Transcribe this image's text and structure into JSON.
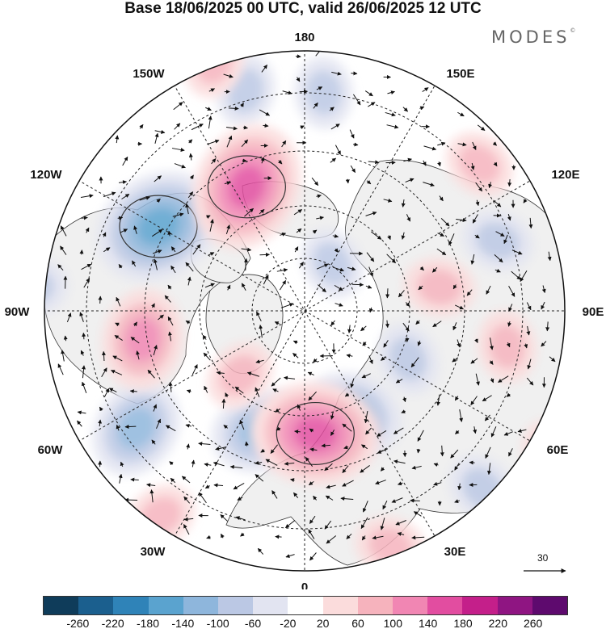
{
  "title": "Base 18/06/2025 00 UTC, valid 26/06/2025 12 UTC",
  "brand": "MODES",
  "brand_mark": "©",
  "longitude_labels": {
    "top": "180",
    "bottom": "0",
    "left": "90W",
    "right": "90E",
    "upper_left_1": "150W",
    "upper_left_2": "120W",
    "upper_right_1": "150E",
    "upper_right_2": "120E",
    "lower_left_1": "60W",
    "lower_left_2": "30W",
    "lower_right_1": "60E",
    "lower_right_2": "30E"
  },
  "vector_scale": {
    "label": "30"
  },
  "colorbar": {
    "ticks": [
      "-260",
      "-220",
      "-180",
      "-140",
      "-100",
      "-60",
      "-20",
      "20",
      "60",
      "100",
      "140",
      "180",
      "220",
      "260"
    ],
    "colors": [
      "#0f3c5a",
      "#1b5f8e",
      "#2f83b8",
      "#5aa3cf",
      "#8eb6dc",
      "#bbc8e4",
      "#e2e4f1",
      "#ffffff",
      "#fbdcdc",
      "#f6b3bd",
      "#f186b3",
      "#e24da0",
      "#c41f8a",
      "#8f1582",
      "#5e0a6e"
    ]
  },
  "anomaly_colors": {
    "neg_light": "#e2e4f1",
    "neg_mid": "#bbc8e4",
    "neg_strong": "#8eb6dc",
    "neg_core": "#5aa3cf",
    "pos_light": "#fbdcdc",
    "pos_mid": "#f6b3bd",
    "pos_strong": "#f186b3",
    "pos_core": "#e24da0",
    "land": "#f0f0f0"
  },
  "anomalies": [
    {
      "kind": "neg",
      "level": 3,
      "lon": -120,
      "colat": 37
    },
    {
      "kind": "neg",
      "level": 2,
      "lon": -20,
      "colat": 28
    },
    {
      "kind": "neg",
      "level": 2,
      "lon": 25,
      "colat": 25
    },
    {
      "kind": "neg",
      "level": 2,
      "lon": -55,
      "colat": 45
    },
    {
      "kind": "neg",
      "level": 1,
      "lon": 150,
      "colat": 12
    },
    {
      "kind": "neg",
      "level": 1,
      "lon": 65,
      "colat": 25
    },
    {
      "kind": "neg",
      "level": 1,
      "lon": 110,
      "colat": 45
    },
    {
      "kind": "neg",
      "level": 1,
      "lon": 45,
      "colat": 55
    },
    {
      "kind": "neg",
      "level": 1,
      "lon": -95,
      "colat": 60
    },
    {
      "kind": "neg",
      "level": 1,
      "lon": 175,
      "colat": 48
    },
    {
      "kind": "neg",
      "level": 1,
      "lon": -165,
      "colat": 50
    },
    {
      "kind": "pos",
      "level": 3,
      "lon": -155,
      "colat": 30
    },
    {
      "kind": "pos",
      "level": 3,
      "lon": 5,
      "colat": 27
    },
    {
      "kind": "pos",
      "level": 2,
      "lon": -80,
      "colat": 36
    },
    {
      "kind": "pos",
      "level": 1,
      "lon": -45,
      "colat": 20
    },
    {
      "kind": "pos",
      "level": 1,
      "lon": 130,
      "colat": 50
    },
    {
      "kind": "pos",
      "level": 1,
      "lon": 80,
      "colat": 45
    },
    {
      "kind": "pos",
      "level": 1,
      "lon": 60,
      "colat": 63
    },
    {
      "kind": "pos",
      "level": 1,
      "lon": -35,
      "colat": 55
    },
    {
      "kind": "pos",
      "level": 1,
      "lon": -160,
      "colat": 58
    },
    {
      "kind": "pos",
      "level": 1,
      "lon": 20,
      "colat": 55
    },
    {
      "kind": "pos",
      "level": 1,
      "lon": 100,
      "colat": 30
    }
  ]
}
